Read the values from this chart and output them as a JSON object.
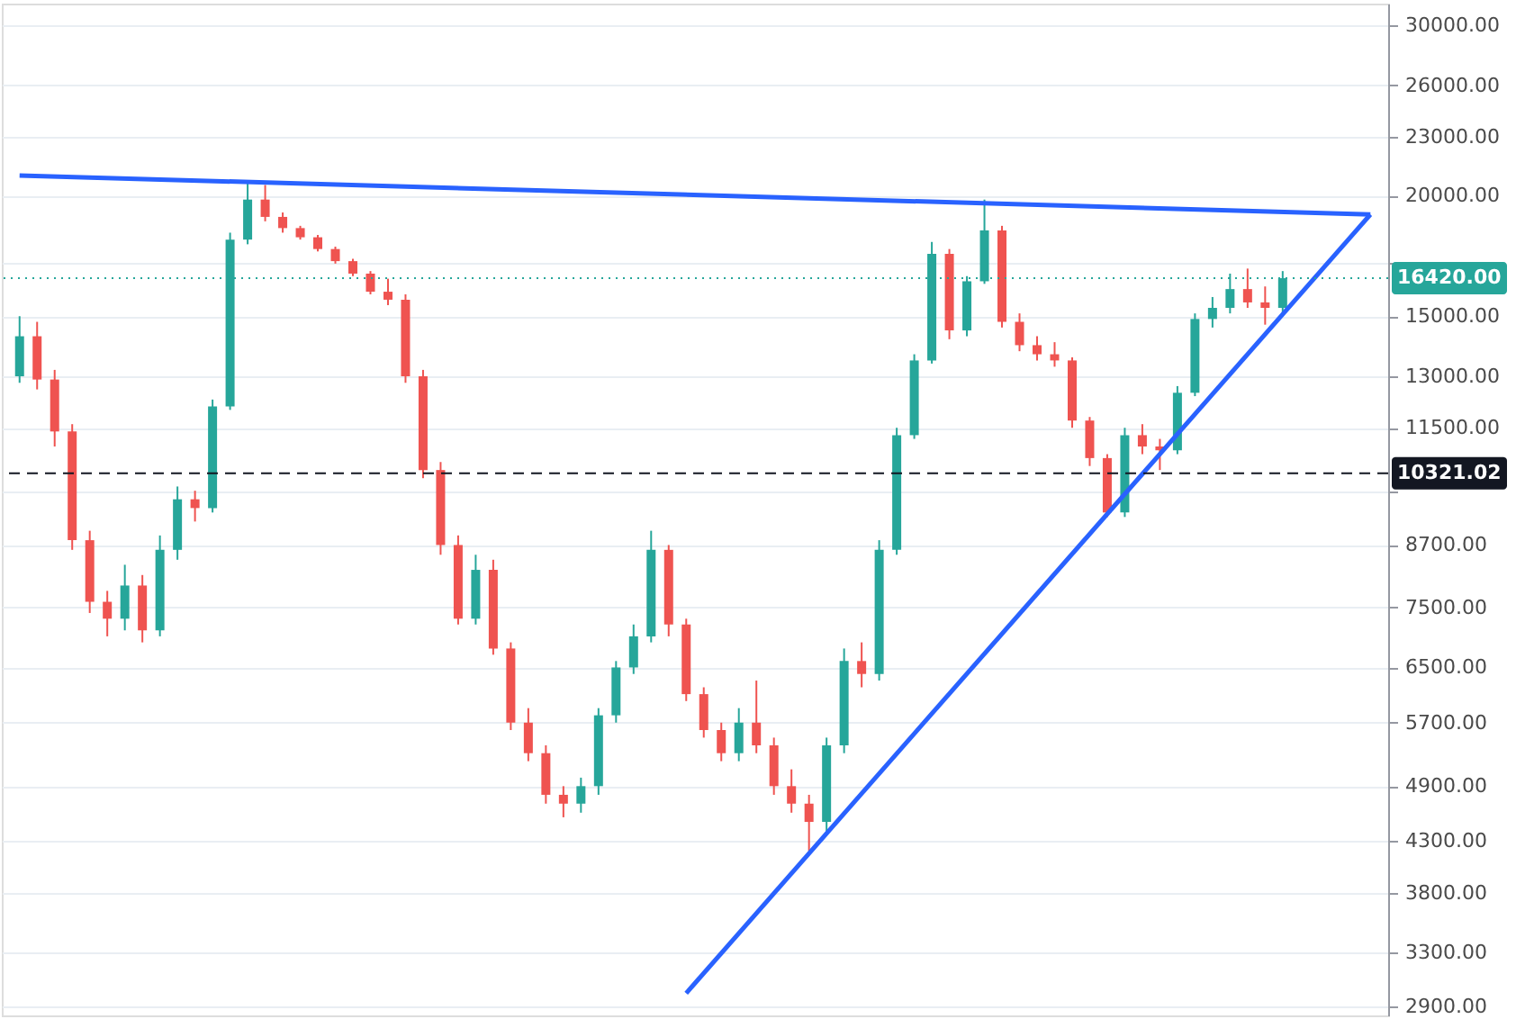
{
  "chart_data": {
    "type": "candlestick",
    "categories": [
      null,
      null,
      null,
      null,
      null,
      null,
      null,
      null,
      null,
      null,
      null,
      null,
      null,
      null,
      null,
      null,
      null,
      null,
      null,
      null,
      null,
      null,
      null,
      null,
      null,
      null,
      null,
      null,
      null,
      null,
      null,
      null,
      null,
      null,
      null,
      null,
      null,
      null,
      null,
      null,
      null,
      null,
      null,
      null,
      null,
      null,
      null,
      null,
      null,
      null,
      null,
      null,
      null,
      null,
      null,
      null,
      null,
      null,
      null,
      null,
      null,
      null,
      null,
      null,
      null,
      null,
      null,
      null,
      null,
      null,
      null,
      null,
      null,
      null,
      null,
      null,
      null,
      null
    ],
    "ohlc": [
      [
        13000,
        15000,
        12800,
        14300
      ],
      [
        14300,
        14800,
        12600,
        12900
      ],
      [
        12900,
        13200,
        11000,
        11400
      ],
      [
        11400,
        11600,
        8600,
        8800
      ],
      [
        8800,
        9000,
        7400,
        7600
      ],
      [
        7600,
        7800,
        7000,
        7300
      ],
      [
        7300,
        8300,
        7100,
        7900
      ],
      [
        7900,
        8100,
        6900,
        7100
      ],
      [
        7100,
        8900,
        7000,
        8600
      ],
      [
        8600,
        10000,
        8400,
        9700
      ],
      [
        9700,
        9900,
        9200,
        9500
      ],
      [
        9500,
        12300,
        9400,
        12100
      ],
      [
        12100,
        18300,
        12000,
        18000
      ],
      [
        18000,
        20600,
        17800,
        19800
      ],
      [
        19800,
        20500,
        18800,
        19000
      ],
      [
        19000,
        19200,
        18300,
        18500
      ],
      [
        18500,
        18600,
        18000,
        18100
      ],
      [
        18100,
        18200,
        17500,
        17600
      ],
      [
        17600,
        17700,
        17000,
        17100
      ],
      [
        17100,
        17200,
        16500,
        16600
      ],
      [
        16600,
        16700,
        15800,
        15900
      ],
      [
        15900,
        16400,
        15400,
        15600
      ],
      [
        15600,
        15800,
        12800,
        13000
      ],
      [
        13000,
        13200,
        10200,
        10400
      ],
      [
        10400,
        10600,
        8500,
        8700
      ],
      [
        8700,
        8900,
        7200,
        7300
      ],
      [
        7300,
        8500,
        7200,
        8200
      ],
      [
        8200,
        8400,
        6700,
        6800
      ],
      [
        6800,
        6900,
        5600,
        5700
      ],
      [
        5700,
        5900,
        5200,
        5300
      ],
      [
        5300,
        5400,
        4700,
        4800
      ],
      [
        4800,
        4900,
        4550,
        4700
      ],
      [
        4700,
        5000,
        4600,
        4900
      ],
      [
        4900,
        5900,
        4800,
        5800
      ],
      [
        5800,
        6600,
        5700,
        6500
      ],
      [
        6500,
        7200,
        6400,
        7000
      ],
      [
        7000,
        9000,
        6900,
        8600
      ],
      [
        8600,
        8700,
        7000,
        7200
      ],
      [
        7200,
        7300,
        6000,
        6100
      ],
      [
        6100,
        6200,
        5500,
        5600
      ],
      [
        5600,
        5700,
        5200,
        5300
      ],
      [
        5300,
        5900,
        5200,
        5700
      ],
      [
        5700,
        6300,
        5300,
        5400
      ],
      [
        5400,
        5500,
        4800,
        4900
      ],
      [
        4900,
        5100,
        4600,
        4700
      ],
      [
        4700,
        4800,
        4200,
        4500
      ],
      [
        4500,
        5500,
        4400,
        5400
      ],
      [
        5400,
        6800,
        5300,
        6600
      ],
      [
        6600,
        6900,
        6200,
        6400
      ],
      [
        6400,
        8800,
        6300,
        8600
      ],
      [
        8600,
        11500,
        8500,
        11300
      ],
      [
        11300,
        13700,
        11200,
        13500
      ],
      [
        13500,
        17900,
        13400,
        17400
      ],
      [
        17400,
        17600,
        14200,
        14500
      ],
      [
        14500,
        16500,
        14300,
        16300
      ],
      [
        16300,
        19800,
        16200,
        18400
      ],
      [
        18400,
        18600,
        14600,
        14800
      ],
      [
        14800,
        15100,
        13800,
        14000
      ],
      [
        14000,
        14300,
        13500,
        13700
      ],
      [
        13700,
        14100,
        13300,
        13500
      ],
      [
        13500,
        13600,
        11500,
        11700
      ],
      [
        11700,
        11800,
        10500,
        10700
      ],
      [
        10700,
        10800,
        9300,
        9400
      ],
      [
        9400,
        11500,
        9300,
        11300
      ],
      [
        11300,
        11600,
        10800,
        11000
      ],
      [
        11000,
        11200,
        10400,
        10900
      ],
      [
        10900,
        12700,
        10800,
        12500
      ],
      [
        12500,
        15100,
        12400,
        14900
      ],
      [
        14900,
        15700,
        14600,
        15300
      ],
      [
        15300,
        16600,
        15100,
        16000
      ],
      [
        16000,
        16800,
        15300,
        15500
      ],
      [
        15500,
        16100,
        14700,
        15300
      ],
      [
        15300,
        16700,
        15000,
        16420
      ],
      null,
      null,
      null,
      null,
      null
    ],
    "colors": [
      "#26a69a",
      "#ef5350",
      "#ef5350",
      "#ef5350",
      "#ef5350",
      "#ef5350",
      "#26a69a",
      "#ef5350",
      "#26a69a",
      "#26a69a",
      "#ef5350",
      "#26a69a",
      "#26a69a",
      "#26a69a",
      "#ef5350",
      "#ef5350",
      "#ef5350",
      "#ef5350",
      "#ef5350",
      "#ef5350",
      "#ef5350",
      "#ef5350",
      "#ef5350",
      "#ef5350",
      "#ef5350",
      "#ef5350",
      "#26a69a",
      "#ef5350",
      "#ef5350",
      "#ef5350",
      "#ef5350",
      "#ef5350",
      "#26a69a",
      "#26a69a",
      "#26a69a",
      "#26a69a",
      "#26a69a",
      "#ef5350",
      "#ef5350",
      "#ef5350",
      "#ef5350",
      "#26a69a",
      "#ef5350",
      "#ef5350",
      "#ef5350",
      "#ef5350",
      "#26a69a",
      "#26a69a",
      "#ef5350",
      "#26a69a",
      "#26a69a",
      "#26a69a",
      "#26a69a",
      "#ef5350",
      "#26a69a",
      "#26a69a",
      "#ef5350",
      "#ef5350",
      "#ef5350",
      "#ef5350",
      "#ef5350",
      "#ef5350",
      "#ef5350",
      "#26a69a",
      "#ef5350",
      "#ef5350",
      "#26a69a",
      "#26a69a",
      "#26a69a",
      "#26a69a",
      "#ef5350",
      "#ef5350",
      "#26a69a",
      null,
      null,
      null,
      null,
      null
    ],
    "series": [
      {
        "type": "line",
        "color": "#2962ff",
        "values": [
          20970,
          null,
          null,
          null,
          null,
          null,
          null,
          null,
          null,
          null,
          null,
          null,
          null,
          null,
          null,
          null,
          null,
          null,
          null,
          null,
          null,
          null,
          null,
          null,
          null,
          null,
          null,
          null,
          null,
          null,
          null,
          null,
          null,
          null,
          null,
          null,
          null,
          null,
          null,
          null,
          null,
          null,
          null,
          null,
          null,
          null,
          null,
          null,
          null,
          null,
          null,
          null,
          null,
          null,
          null,
          null,
          null,
          null,
          null,
          null,
          null,
          null,
          null,
          null,
          null,
          null,
          null,
          null,
          null,
          null,
          null,
          null,
          null,
          null,
          null,
          null,
          null,
          19110
        ]
      },
      {
        "type": "line",
        "color": "#2962ff",
        "values": [
          null,
          null,
          null,
          null,
          null,
          null,
          null,
          null,
          null,
          null,
          null,
          null,
          null,
          null,
          null,
          null,
          null,
          null,
          null,
          null,
          null,
          null,
          null,
          null,
          null,
          null,
          null,
          null,
          null,
          null,
          null,
          null,
          null,
          null,
          null,
          null,
          null,
          null,
          2993,
          null,
          null,
          null,
          null,
          null,
          null,
          null,
          null,
          null,
          null,
          null,
          null,
          null,
          null,
          null,
          null,
          null,
          null,
          null,
          null,
          null,
          null,
          null,
          null,
          null,
          null,
          null,
          null,
          null,
          null,
          null,
          null,
          null,
          null,
          null,
          null,
          null,
          null,
          19110
        ]
      }
    ],
    "ref_lines": [
      {
        "axis": "y",
        "value": 16420,
        "label": "16420.00",
        "color": "#26a69a",
        "line_style": "dotted"
      },
      {
        "axis": "y",
        "value": 10321.02,
        "label": "10321.02",
        "color": "#131722",
        "line_style": "dashed"
      }
    ],
    "log": "y",
    "ylim": [
      2839,
      31570
    ],
    "yticks": [
      {
        "value": 2900,
        "label": "2900.00"
      },
      {
        "value": 3300,
        "label": "3300.00"
      },
      {
        "value": 3800,
        "label": "3800.00"
      },
      {
        "value": 4300,
        "label": "4300.00"
      },
      {
        "value": 4900,
        "label": "4900.00"
      },
      {
        "value": 5700,
        "label": "5700.00"
      },
      {
        "value": 6500,
        "label": "6500.00"
      },
      {
        "value": 7500,
        "label": "7500.00"
      },
      {
        "value": 8700,
        "label": "8700.00"
      },
      {
        "value": 9900,
        "label": null
      },
      {
        "value": 11500,
        "label": "11500.00"
      },
      {
        "value": 13000,
        "label": "13000.00"
      },
      {
        "value": 15000,
        "label": "15000.00"
      },
      {
        "value": 17000,
        "label": null
      },
      {
        "value": 20000,
        "label": "20000.00"
      },
      {
        "value": 23000,
        "label": "23000.00"
      },
      {
        "value": 26000,
        "label": "26000.00"
      },
      {
        "value": 30000,
        "label": "30000.00"
      }
    ],
    "grid": "y",
    "tick_labels": "y"
  }
}
